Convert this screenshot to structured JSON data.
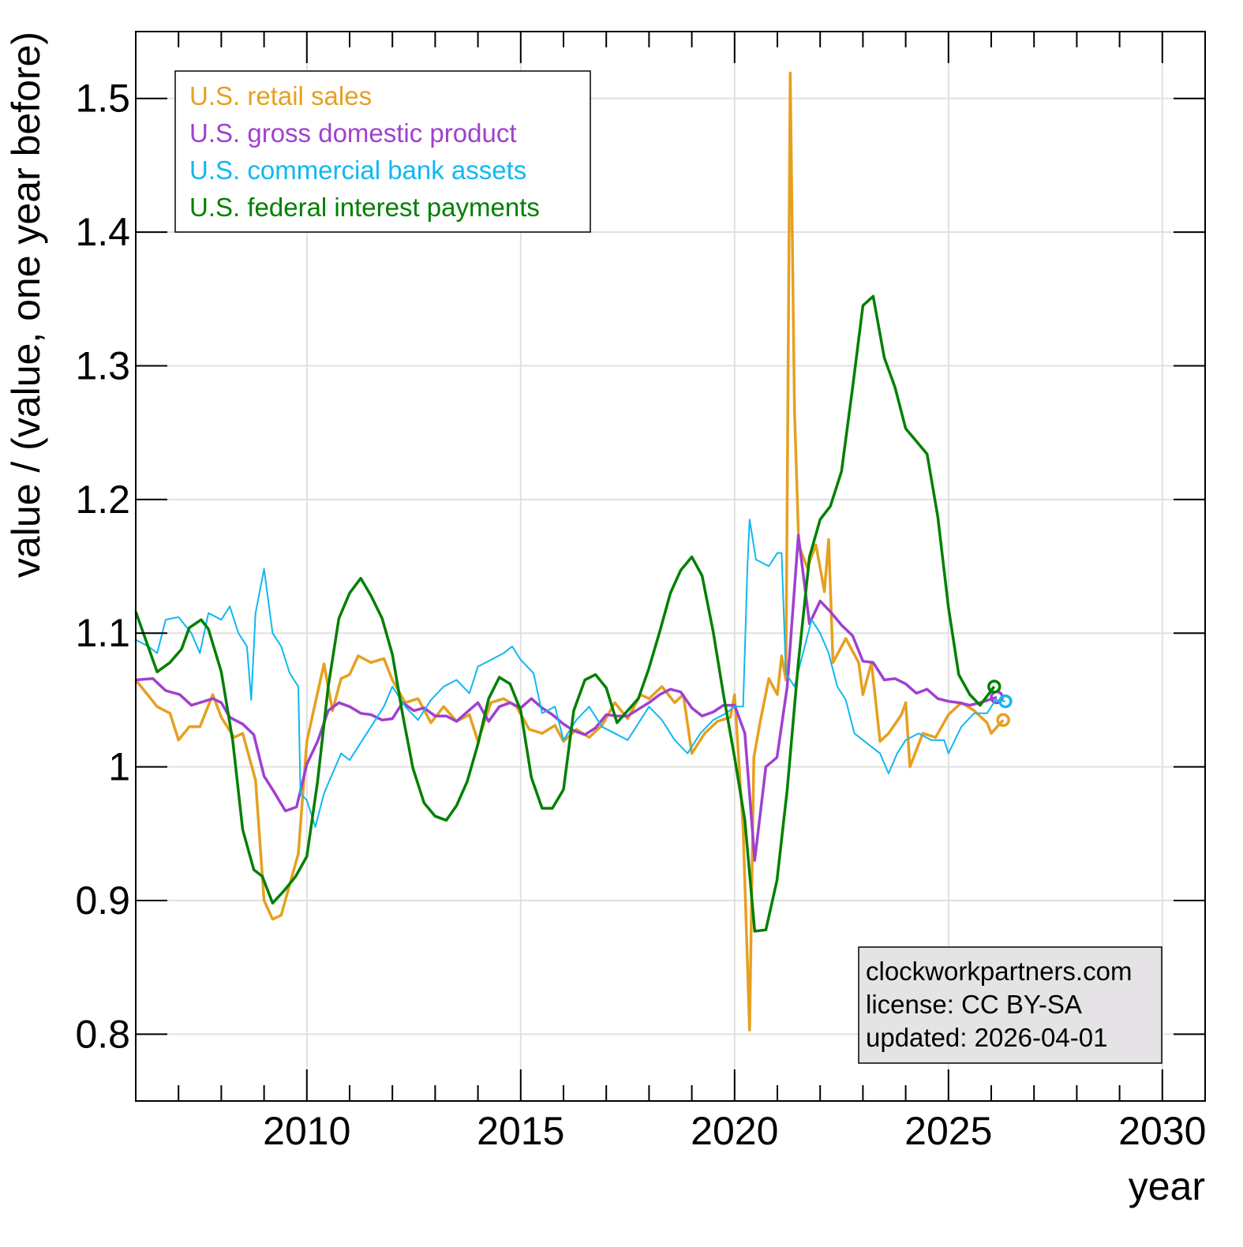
{
  "chart_data": {
    "type": "line",
    "xlabel": "year",
    "ylabel": "value / (value, one year before)",
    "xlim": [
      2006,
      2031
    ],
    "ylim": [
      0.75,
      1.55
    ],
    "x_ticks": [
      2010,
      2015,
      2020,
      2025,
      2030
    ],
    "x_tick_labels": [
      "2010",
      "2015",
      "2020",
      "2025",
      "2030"
    ],
    "y_ticks": [
      0.8,
      0.9,
      1.0,
      1.1,
      1.2,
      1.3,
      1.4,
      1.5
    ],
    "y_tick_labels": [
      "0.8",
      "0.9",
      "1",
      "1.1",
      "1.2",
      "1.3",
      "1.4",
      "1.5"
    ],
    "grid": true,
    "legend_position": "top-left",
    "series": [
      {
        "name": "U.S. retail sales",
        "color": "#e6a020",
        "x": [
          2006.0,
          2006.5,
          2006.8,
          2007.0,
          2007.25,
          2007.5,
          2007.8,
          2008.0,
          2008.3,
          2008.5,
          2008.8,
          2009.0,
          2009.2,
          2009.4,
          2009.6,
          2009.8,
          2010.0,
          2010.2,
          2010.4,
          2010.6,
          2010.8,
          2011.0,
          2011.2,
          2011.5,
          2011.8,
          2012.0,
          2012.3,
          2012.6,
          2012.9,
          2013.2,
          2013.5,
          2013.8,
          2014.0,
          2014.3,
          2014.6,
          2014.9,
          2015.2,
          2015.5,
          2015.8,
          2016.0,
          2016.3,
          2016.6,
          2016.9,
          2017.2,
          2017.5,
          2017.8,
          2018.0,
          2018.3,
          2018.6,
          2018.8,
          2019.0,
          2019.3,
          2019.6,
          2019.9,
          2020.0,
          2020.2,
          2020.35,
          2020.45,
          2020.6,
          2020.8,
          2021.0,
          2021.1,
          2021.2,
          2021.3,
          2021.4,
          2021.5,
          2021.7,
          2021.9,
          2022.0,
          2022.1,
          2022.2,
          2022.3,
          2022.6,
          2022.9,
          2023.0,
          2023.2,
          2023.4,
          2023.6,
          2023.9,
          2024.0,
          2024.1,
          2024.4,
          2024.7,
          2025.0,
          2025.3,
          2025.6,
          2025.9,
          2026.0,
          2026.28
        ],
        "y": [
          1.065,
          1.045,
          1.04,
          1.02,
          1.03,
          1.03,
          1.054,
          1.037,
          1.022,
          1.025,
          0.99,
          0.9,
          0.886,
          0.889,
          0.912,
          0.935,
          1.019,
          1.048,
          1.077,
          1.042,
          1.066,
          1.069,
          1.083,
          1.078,
          1.081,
          1.065,
          1.048,
          1.051,
          1.033,
          1.045,
          1.034,
          1.039,
          1.019,
          1.048,
          1.051,
          1.045,
          1.028,
          1.025,
          1.031,
          1.019,
          1.028,
          1.022,
          1.031,
          1.048,
          1.036,
          1.054,
          1.051,
          1.06,
          1.048,
          1.054,
          1.01,
          1.025,
          1.034,
          1.037,
          1.054,
          0.954,
          0.803,
          1.007,
          1.034,
          1.066,
          1.054,
          1.083,
          1.065,
          1.519,
          1.267,
          1.166,
          1.149,
          1.166,
          1.149,
          1.131,
          1.17,
          1.078,
          1.096,
          1.078,
          1.054,
          1.078,
          1.019,
          1.025,
          1.039,
          1.048,
          1.0,
          1.025,
          1.022,
          1.039,
          1.048,
          1.042,
          1.033,
          1.025,
          1.035
        ]
      },
      {
        "name": "U.S. gross domestic product",
        "color": "#a040d0",
        "x": [
          2006.0,
          2006.4,
          2006.7,
          2007.03,
          2007.3,
          2007.8,
          2008.0,
          2008.2,
          2008.5,
          2008.76,
          2009.0,
          2009.2,
          2009.5,
          2009.76,
          2010.0,
          2010.25,
          2010.5,
          2010.75,
          2011.0,
          2011.26,
          2011.5,
          2011.76,
          2012.0,
          2012.24,
          2012.5,
          2012.74,
          2013.0,
          2013.26,
          2013.5,
          2013.75,
          2014.0,
          2014.25,
          2014.5,
          2014.75,
          2015.0,
          2015.25,
          2015.5,
          2015.74,
          2016.0,
          2016.24,
          2016.5,
          2016.75,
          2017.0,
          2017.25,
          2017.5,
          2017.75,
          2018.0,
          2018.25,
          2018.5,
          2018.74,
          2019.0,
          2019.24,
          2019.5,
          2019.74,
          2020.0,
          2020.24,
          2020.47,
          2020.73,
          2020.99,
          2021.23,
          2021.49,
          2021.75,
          2022.0,
          2022.24,
          2022.5,
          2022.76,
          2023.0,
          2023.24,
          2023.5,
          2023.75,
          2024.0,
          2024.25,
          2024.5,
          2024.75,
          2025.0,
          2025.24,
          2025.5,
          2025.74,
          2026.13
        ],
        "y": [
          1.065,
          1.066,
          1.057,
          1.054,
          1.046,
          1.051,
          1.048,
          1.037,
          1.032,
          1.024,
          0.993,
          0.983,
          0.967,
          0.97,
          1.002,
          1.019,
          1.042,
          1.048,
          1.045,
          1.04,
          1.039,
          1.035,
          1.036,
          1.048,
          1.042,
          1.044,
          1.038,
          1.038,
          1.034,
          1.041,
          1.048,
          1.034,
          1.045,
          1.048,
          1.044,
          1.051,
          1.044,
          1.039,
          1.032,
          1.027,
          1.024,
          1.029,
          1.039,
          1.038,
          1.038,
          1.043,
          1.048,
          1.054,
          1.058,
          1.056,
          1.044,
          1.038,
          1.041,
          1.046,
          1.046,
          1.025,
          0.93,
          1.0,
          1.007,
          1.06,
          1.173,
          1.107,
          1.124,
          1.116,
          1.106,
          1.098,
          1.079,
          1.078,
          1.065,
          1.066,
          1.062,
          1.055,
          1.058,
          1.051,
          1.049,
          1.048,
          1.046,
          1.048,
          1.052
        ]
      },
      {
        "name": "U.S. commercial bank assets",
        "color": "#10b8f0",
        "x": [
          2006.0,
          2006.3,
          2006.5,
          2006.7,
          2007.0,
          2007.3,
          2007.5,
          2007.7,
          2008.0,
          2008.2,
          2008.4,
          2008.6,
          2008.7,
          2008.8,
          2009.0,
          2009.2,
          2009.4,
          2009.6,
          2009.8,
          2009.85,
          2010.0,
          2010.2,
          2010.4,
          2010.6,
          2010.8,
          2011.0,
          2011.3,
          2011.5,
          2011.8,
          2012.0,
          2012.3,
          2012.6,
          2012.9,
          2013.2,
          2013.5,
          2013.8,
          2014.0,
          2014.3,
          2014.6,
          2014.8,
          2015.0,
          2015.3,
          2015.5,
          2015.8,
          2016.0,
          2016.3,
          2016.6,
          2016.9,
          2017.2,
          2017.5,
          2017.8,
          2018.0,
          2018.3,
          2018.6,
          2018.9,
          2019.2,
          2019.5,
          2019.8,
          2020.0,
          2020.2,
          2020.3,
          2020.35,
          2020.5,
          2020.8,
          2021.0,
          2021.1,
          2021.2,
          2021.4,
          2021.6,
          2021.8,
          2022.0,
          2022.2,
          2022.4,
          2022.6,
          2022.8,
          2023.0,
          2023.2,
          2023.4,
          2023.6,
          2023.8,
          2024.0,
          2024.3,
          2024.6,
          2024.9,
          2025.0,
          2025.3,
          2025.6,
          2025.9,
          2026.1,
          2026.33
        ],
        "y": [
          1.095,
          1.09,
          1.085,
          1.11,
          1.112,
          1.1,
          1.085,
          1.115,
          1.11,
          1.12,
          1.1,
          1.09,
          1.05,
          1.115,
          1.148,
          1.1,
          1.09,
          1.07,
          1.06,
          0.98,
          0.975,
          0.955,
          0.98,
          0.995,
          1.01,
          1.005,
          1.02,
          1.03,
          1.045,
          1.06,
          1.045,
          1.035,
          1.05,
          1.06,
          1.065,
          1.055,
          1.075,
          1.08,
          1.085,
          1.09,
          1.08,
          1.07,
          1.04,
          1.045,
          1.02,
          1.035,
          1.045,
          1.03,
          1.025,
          1.02,
          1.035,
          1.045,
          1.035,
          1.02,
          1.01,
          1.025,
          1.035,
          1.04,
          1.045,
          1.045,
          1.15,
          1.185,
          1.155,
          1.15,
          1.16,
          1.16,
          1.07,
          1.06,
          1.085,
          1.11,
          1.1,
          1.085,
          1.06,
          1.05,
          1.025,
          1.02,
          1.015,
          1.01,
          0.995,
          1.01,
          1.02,
          1.025,
          1.02,
          1.02,
          1.01,
          1.03,
          1.04,
          1.04,
          1.05,
          1.049
        ]
      },
      {
        "name": "U.S. federal interest payments",
        "color": "#008000",
        "x": [
          2006.0,
          2006.5,
          2006.8,
          2007.07,
          2007.25,
          2007.53,
          2007.7,
          2008.0,
          2008.27,
          2008.5,
          2008.76,
          2008.96,
          2009.2,
          2009.46,
          2009.74,
          2010.0,
          2010.25,
          2010.5,
          2010.75,
          2011.0,
          2011.26,
          2011.5,
          2011.76,
          2012.0,
          2012.24,
          2012.48,
          2012.74,
          2013.0,
          2013.26,
          2013.5,
          2013.75,
          2014.0,
          2014.25,
          2014.5,
          2014.75,
          2015.0,
          2015.25,
          2015.5,
          2015.74,
          2016.0,
          2016.24,
          2016.5,
          2016.75,
          2017.0,
          2017.25,
          2017.5,
          2017.75,
          2017.99,
          2018.25,
          2018.5,
          2018.74,
          2019.0,
          2019.24,
          2019.5,
          2019.74,
          2020.0,
          2020.24,
          2020.47,
          2020.73,
          2020.99,
          2021.23,
          2021.49,
          2021.75,
          2022.0,
          2022.24,
          2022.5,
          2022.76,
          2023.0,
          2023.24,
          2023.5,
          2023.75,
          2024.0,
          2024.5,
          2024.75,
          2025.0,
          2025.24,
          2025.5,
          2025.74,
          2026.07
        ],
        "y": [
          1.116,
          1.071,
          1.078,
          1.088,
          1.104,
          1.11,
          1.103,
          1.071,
          1.019,
          0.953,
          0.923,
          0.918,
          0.898,
          0.907,
          0.918,
          0.933,
          0.989,
          1.06,
          1.111,
          1.13,
          1.141,
          1.128,
          1.111,
          1.084,
          1.039,
          0.999,
          0.973,
          0.963,
          0.96,
          0.971,
          0.989,
          1.017,
          1.051,
          1.067,
          1.062,
          1.042,
          0.992,
          0.969,
          0.969,
          0.983,
          1.042,
          1.065,
          1.069,
          1.059,
          1.033,
          1.042,
          1.051,
          1.073,
          1.101,
          1.13,
          1.147,
          1.157,
          1.143,
          1.101,
          1.054,
          1.007,
          0.96,
          0.877,
          0.878,
          0.915,
          0.983,
          1.078,
          1.157,
          1.185,
          1.195,
          1.221,
          1.284,
          1.345,
          1.352,
          1.306,
          1.284,
          1.253,
          1.234,
          1.187,
          1.119,
          1.069,
          1.054,
          1.046,
          1.06
        ]
      }
    ]
  },
  "info_box": {
    "line1": "clockworkpartners.com",
    "line2": "license: CC BY-SA",
    "line3": "updated: 2026-04-01"
  }
}
